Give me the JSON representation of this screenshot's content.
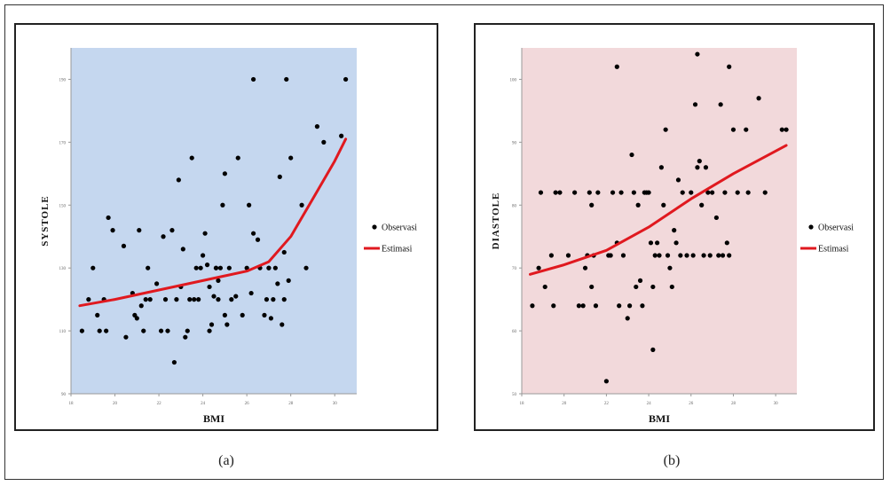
{
  "captions": [
    "(a)",
    "(b)"
  ],
  "legend": {
    "observed": "Observasi",
    "estimated": "Estimasi"
  },
  "colors": {
    "panel_a_bg": "#c5d7ef",
    "panel_b_bg": "#f2d9db",
    "curve": "#e0191f",
    "points": "#000000"
  },
  "chart_data": [
    {
      "type": "scatter",
      "xlabel": "BMI",
      "ylabel": "SYSTOLE",
      "xlim": [
        18,
        31
      ],
      "ylim": [
        90,
        200
      ],
      "xticks": [
        18,
        20,
        22,
        24,
        26,
        28,
        30
      ],
      "yticks": [
        90,
        110,
        130,
        150,
        170,
        190
      ],
      "grid": false,
      "legend_position": "right",
      "series": [
        {
          "name": "Observasi",
          "points": [
            [
              18.5,
              110
            ],
            [
              18.8,
              120
            ],
            [
              19.0,
              130
            ],
            [
              19.2,
              115
            ],
            [
              19.5,
              120
            ],
            [
              19.6,
              110
            ],
            [
              19.7,
              146
            ],
            [
              19.9,
              142
            ],
            [
              20.4,
              137
            ],
            [
              20.5,
              108
            ],
            [
              20.8,
              122
            ],
            [
              20.9,
              115
            ],
            [
              21.0,
              114
            ],
            [
              21.1,
              142
            ],
            [
              21.2,
              118
            ],
            [
              21.3,
              110
            ],
            [
              21.4,
              120
            ],
            [
              21.5,
              130
            ],
            [
              21.9,
              125
            ],
            [
              22.1,
              110
            ],
            [
              22.2,
              140
            ],
            [
              22.3,
              120
            ],
            [
              22.4,
              110
            ],
            [
              22.6,
              142
            ],
            [
              22.7,
              100
            ],
            [
              22.8,
              120
            ],
            [
              22.9,
              158
            ],
            [
              23.0,
              124
            ],
            [
              23.1,
              136
            ],
            [
              23.2,
              108
            ],
            [
              23.3,
              110
            ],
            [
              23.4,
              120
            ],
            [
              23.5,
              165
            ],
            [
              23.6,
              120
            ],
            [
              23.7,
              130
            ],
            [
              23.8,
              120
            ],
            [
              23.9,
              130
            ],
            [
              24.0,
              134
            ],
            [
              24.1,
              141
            ],
            [
              24.2,
              131
            ],
            [
              24.3,
              110
            ],
            [
              24.3,
              124
            ],
            [
              24.4,
              112
            ],
            [
              24.5,
              121
            ],
            [
              24.6,
              130
            ],
            [
              24.7,
              120
            ],
            [
              24.7,
              126
            ],
            [
              24.8,
              130
            ],
            [
              24.9,
              150
            ],
            [
              25.0,
              115
            ],
            [
              25.0,
              160
            ],
            [
              25.1,
              112
            ],
            [
              25.2,
              130
            ],
            [
              25.3,
              120
            ],
            [
              25.5,
              121
            ],
            [
              25.6,
              165
            ],
            [
              25.8,
              115
            ],
            [
              26.0,
              130
            ],
            [
              26.1,
              150
            ],
            [
              26.2,
              122
            ],
            [
              26.3,
              141
            ],
            [
              26.3,
              190
            ],
            [
              26.5,
              139
            ],
            [
              26.6,
              130
            ],
            [
              26.8,
              115
            ],
            [
              26.9,
              120
            ],
            [
              27.0,
              130
            ],
            [
              27.1,
              114
            ],
            [
              27.2,
              120
            ],
            [
              27.3,
              130
            ],
            [
              27.4,
              125
            ],
            [
              27.5,
              159
            ],
            [
              27.6,
              112
            ],
            [
              27.7,
              120
            ],
            [
              27.7,
              135
            ],
            [
              27.8,
              190
            ],
            [
              27.9,
              126
            ],
            [
              28.0,
              165
            ],
            [
              28.5,
              150
            ],
            [
              28.7,
              130
            ],
            [
              29.2,
              175
            ],
            [
              29.5,
              170
            ],
            [
              30.3,
              172
            ],
            [
              30.5,
              190
            ],
            [
              19.3,
              110
            ],
            [
              21.6,
              120
            ],
            [
              24.6,
              130
            ],
            [
              27.0,
              130
            ]
          ]
        },
        {
          "name": "Estimasi",
          "points": [
            [
              18.4,
              118
            ],
            [
              20,
              120
            ],
            [
              22,
              123
            ],
            [
              24,
              126
            ],
            [
              26,
              129
            ],
            [
              27,
              132
            ],
            [
              28,
              140
            ],
            [
              29,
              152
            ],
            [
              30,
              164
            ],
            [
              30.5,
              171
            ]
          ]
        }
      ]
    },
    {
      "type": "scatter",
      "xlabel": "BMI",
      "ylabel": "DIASTOLE",
      "xlim": [
        18,
        31
      ],
      "ylim": [
        50,
        105
      ],
      "xticks": [
        18,
        20,
        22,
        24,
        26,
        28,
        30
      ],
      "yticks": [
        50,
        60,
        70,
        80,
        90,
        100
      ],
      "grid": false,
      "legend_position": "right",
      "series": [
        {
          "name": "Observasi",
          "points": [
            [
              18.5,
              64
            ],
            [
              18.8,
              70
            ],
            [
              18.9,
              82
            ],
            [
              19.1,
              67
            ],
            [
              19.4,
              72
            ],
            [
              19.5,
              64
            ],
            [
              19.6,
              82
            ],
            [
              19.8,
              82
            ],
            [
              20.2,
              72
            ],
            [
              20.5,
              82
            ],
            [
              20.7,
              64
            ],
            [
              20.9,
              64
            ],
            [
              21.0,
              70
            ],
            [
              21.1,
              72
            ],
            [
              21.2,
              82
            ],
            [
              21.3,
              67
            ],
            [
              21.4,
              72
            ],
            [
              21.5,
              64
            ],
            [
              21.6,
              82
            ],
            [
              22.0,
              52
            ],
            [
              22.1,
              72
            ],
            [
              22.2,
              72
            ],
            [
              22.3,
              82
            ],
            [
              22.5,
              74
            ],
            [
              22.6,
              64
            ],
            [
              22.7,
              82
            ],
            [
              22.8,
              72
            ],
            [
              23.0,
              62
            ],
            [
              23.1,
              64
            ],
            [
              23.2,
              88
            ],
            [
              23.3,
              82
            ],
            [
              23.4,
              67
            ],
            [
              23.5,
              80
            ],
            [
              23.6,
              68
            ],
            [
              23.7,
              64
            ],
            [
              23.8,
              82
            ],
            [
              23.9,
              82
            ],
            [
              24.0,
              82
            ],
            [
              24.1,
              74
            ],
            [
              24.2,
              67
            ],
            [
              24.3,
              72
            ],
            [
              24.4,
              74
            ],
            [
              24.5,
              72
            ],
            [
              24.6,
              86
            ],
            [
              24.7,
              80
            ],
            [
              24.8,
              92
            ],
            [
              24.9,
              72
            ],
            [
              25.0,
              70
            ],
            [
              25.1,
              67
            ],
            [
              25.2,
              76
            ],
            [
              25.3,
              74
            ],
            [
              25.4,
              84
            ],
            [
              25.5,
              72
            ],
            [
              25.6,
              82
            ],
            [
              25.8,
              72
            ],
            [
              26.0,
              82
            ],
            [
              26.1,
              72
            ],
            [
              26.2,
              96
            ],
            [
              26.3,
              86
            ],
            [
              26.4,
              87
            ],
            [
              26.5,
              80
            ],
            [
              26.6,
              72
            ],
            [
              26.7,
              86
            ],
            [
              26.8,
              82
            ],
            [
              26.9,
              72
            ],
            [
              27.0,
              82
            ],
            [
              27.2,
              78
            ],
            [
              27.3,
              72
            ],
            [
              27.4,
              96
            ],
            [
              27.5,
              72
            ],
            [
              27.6,
              82
            ],
            [
              27.7,
              74
            ],
            [
              27.8,
              72
            ],
            [
              28.0,
              92
            ],
            [
              28.2,
              82
            ],
            [
              28.6,
              92
            ],
            [
              28.7,
              82
            ],
            [
              29.2,
              97
            ],
            [
              29.5,
              82
            ],
            [
              30.3,
              92
            ],
            [
              30.5,
              92
            ],
            [
              22.5,
              102
            ],
            [
              26.3,
              104
            ],
            [
              27.8,
              102
            ],
            [
              24.2,
              57
            ],
            [
              21.3,
              80
            ]
          ]
        },
        {
          "name": "Estimasi",
          "points": [
            [
              18.4,
              69
            ],
            [
              20,
              70.5
            ],
            [
              22,
              72.8
            ],
            [
              24,
              76.5
            ],
            [
              26,
              81
            ],
            [
              28,
              85
            ],
            [
              30.5,
              89.5
            ]
          ]
        }
      ]
    }
  ]
}
